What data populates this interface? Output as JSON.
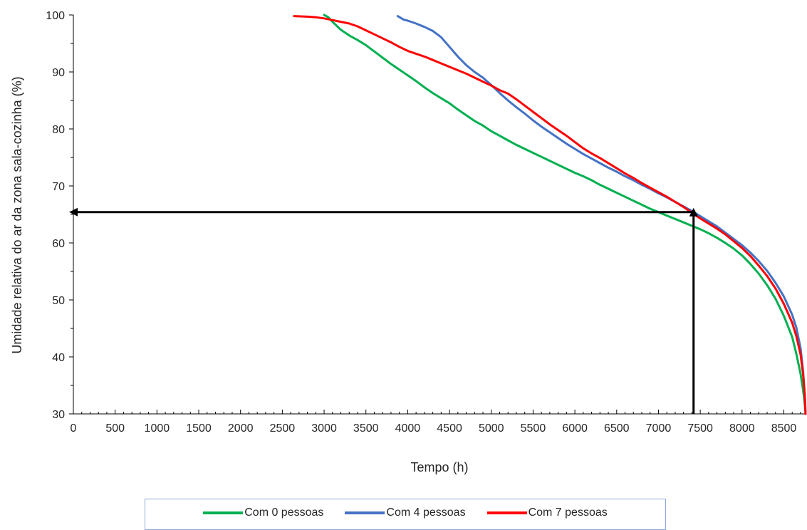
{
  "chart_data": {
    "type": "line",
    "title": "",
    "xlabel": "Tempo (h)",
    "ylabel": "Umidade relativa do ar da zona sala-cozinha (%)",
    "xlim": [
      0,
      8760
    ],
    "ylim": [
      30,
      100
    ],
    "x_ticks": [
      0,
      500,
      1000,
      1500,
      2000,
      2500,
      3000,
      3500,
      4000,
      4500,
      5000,
      5500,
      6000,
      6500,
      7000,
      7500,
      8000,
      8500
    ],
    "y_ticks": [
      30,
      40,
      50,
      60,
      70,
      80,
      90,
      100
    ],
    "grid": false,
    "legend_position": "bottom",
    "series": [
      {
        "name": "Com 0 pessoas",
        "color": "#00b050",
        "x": [
          3000,
          3050,
          3100,
          3200,
          3300,
          3400,
          3500,
          3600,
          3700,
          3800,
          3900,
          4000,
          4100,
          4200,
          4300,
          4400,
          4500,
          4600,
          4700,
          4800,
          4900,
          5000,
          5100,
          5200,
          5300,
          5400,
          5500,
          5600,
          5700,
          5800,
          5900,
          6000,
          6100,
          6200,
          6300,
          6400,
          6500,
          6600,
          6700,
          6800,
          6900,
          7000,
          7100,
          7200,
          7300,
          7400,
          7500,
          7600,
          7700,
          7800,
          7900,
          8000,
          8100,
          8200,
          8300,
          8400,
          8500,
          8600,
          8650,
          8700,
          8730,
          8750,
          8760
        ],
        "y": [
          100,
          99.6,
          98.8,
          97.4,
          96.4,
          95.6,
          94.7,
          93.6,
          92.5,
          91.4,
          90.4,
          89.4,
          88.4,
          87.3,
          86.3,
          85.4,
          84.5,
          83.4,
          82.4,
          81.4,
          80.6,
          79.6,
          78.8,
          78.0,
          77.2,
          76.5,
          75.8,
          75.1,
          74.4,
          73.7,
          73.0,
          72.3,
          71.7,
          71.0,
          70.2,
          69.5,
          68.8,
          68.1,
          67.4,
          66.7,
          66.0,
          65.4,
          64.8,
          64.2,
          63.6,
          63.0,
          62.4,
          61.7,
          60.9,
          60.0,
          59.0,
          57.8,
          56.3,
          54.6,
          52.6,
          50.2,
          47.2,
          43.5,
          40.5,
          37.0,
          34.2,
          31.8,
          30
        ]
      },
      {
        "name": "Com 4 pessoas",
        "color": "#4472c4",
        "x": [
          3880,
          3950,
          4000,
          4100,
          4200,
          4300,
          4400,
          4500,
          4600,
          4700,
          4800,
          4900,
          5000,
          5100,
          5200,
          5300,
          5400,
          5500,
          5600,
          5700,
          5800,
          5900,
          6000,
          6100,
          6200,
          6300,
          6400,
          6500,
          6600,
          6700,
          6800,
          6900,
          7000,
          7100,
          7200,
          7300,
          7400,
          7500,
          7600,
          7700,
          7800,
          7900,
          8000,
          8100,
          8200,
          8300,
          8400,
          8500,
          8600,
          8650,
          8700,
          8730,
          8750,
          8760
        ],
        "y": [
          99.8,
          99.2,
          99.0,
          98.5,
          97.9,
          97.2,
          96.1,
          94.4,
          92.7,
          91.2,
          90.0,
          89.0,
          87.7,
          86.3,
          85.0,
          83.8,
          82.7,
          81.5,
          80.4,
          79.4,
          78.4,
          77.4,
          76.5,
          75.6,
          74.8,
          74.0,
          73.2,
          72.5,
          71.7,
          71.0,
          70.2,
          69.5,
          68.7,
          68.0,
          67.2,
          66.4,
          65.6,
          64.7,
          63.8,
          62.9,
          61.8,
          60.7,
          59.6,
          58.3,
          56.8,
          55.1,
          53.0,
          50.6,
          47.4,
          45.1,
          41.5,
          37.5,
          33.5,
          30
        ]
      },
      {
        "name": "Com 7 pessoas",
        "color": "#ff0000",
        "x": [
          2640,
          2800,
          2900,
          3000,
          3100,
          3200,
          3300,
          3400,
          3500,
          3600,
          3700,
          3800,
          3900,
          4000,
          4100,
          4200,
          4300,
          4400,
          4500,
          4600,
          4700,
          4800,
          4900,
          5000,
          5100,
          5200,
          5300,
          5400,
          5500,
          5600,
          5700,
          5800,
          5900,
          6000,
          6100,
          6200,
          6300,
          6400,
          6500,
          6600,
          6700,
          6800,
          6900,
          7000,
          7100,
          7200,
          7300,
          7400,
          7500,
          7600,
          7700,
          7800,
          7900,
          8000,
          8100,
          8200,
          8300,
          8400,
          8500,
          8600,
          8650,
          8700,
          8730,
          8750,
          8760
        ],
        "y": [
          99.8,
          99.7,
          99.6,
          99.4,
          99.1,
          98.8,
          98.5,
          98.0,
          97.3,
          96.6,
          95.9,
          95.2,
          94.4,
          93.7,
          93.2,
          92.7,
          92.1,
          91.5,
          90.9,
          90.3,
          89.7,
          89.0,
          88.3,
          87.6,
          86.8,
          86.2,
          85.2,
          84.1,
          83.0,
          81.9,
          80.8,
          79.8,
          78.8,
          77.7,
          76.6,
          75.7,
          74.9,
          74.0,
          73.1,
          72.2,
          71.4,
          70.5,
          69.7,
          68.9,
          68.1,
          67.2,
          66.3,
          65.3,
          64.3,
          63.4,
          62.5,
          61.5,
          60.3,
          59.1,
          57.7,
          56.0,
          54.2,
          52.0,
          49.3,
          46.0,
          43.6,
          40.4,
          37.0,
          33.5,
          30
        ]
      }
    ],
    "annotations": [
      {
        "type": "reference-arrows",
        "color": "#000000",
        "point": [
          7420,
          65.4
        ]
      }
    ]
  }
}
